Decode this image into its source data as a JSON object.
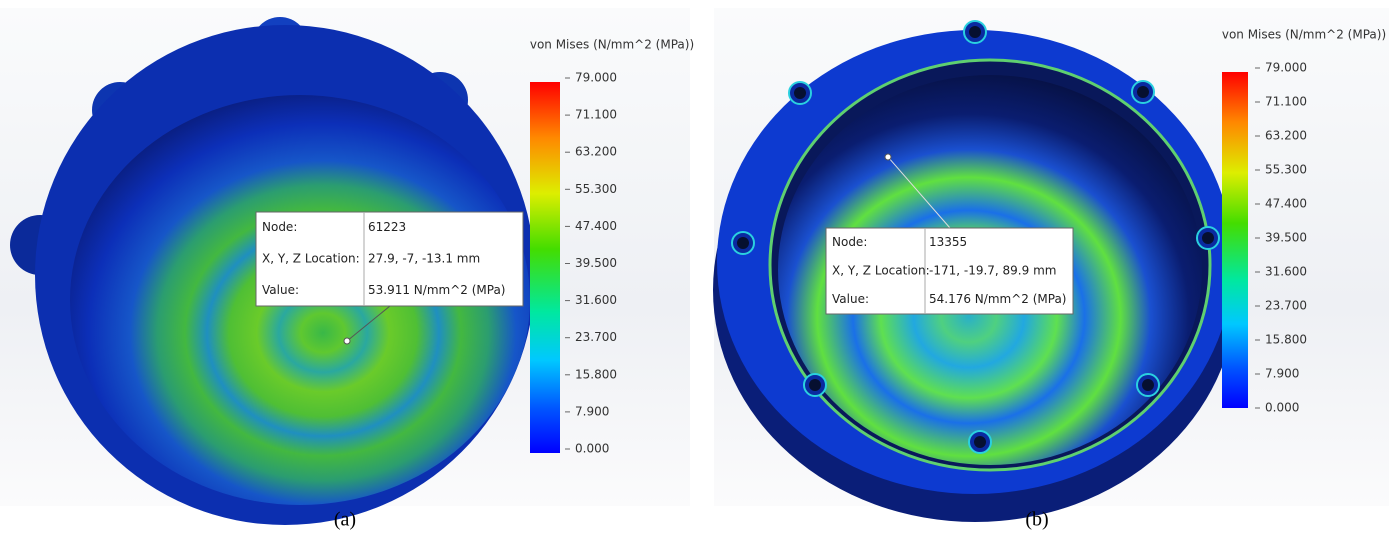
{
  "panels": [
    {
      "caption": "(a)",
      "legend_title": "von Mises (N/mm^2 (MPa))",
      "legend_ticks": [
        "79.000",
        "71.100",
        "63.200",
        "55.300",
        "47.400",
        "39.500",
        "31.600",
        "23.700",
        "15.800",
        "7.900",
        "0.000"
      ],
      "probe": {
        "rows": [
          [
            "Node:",
            "61223"
          ],
          [
            "X, Y, Z Location:",
            "27.9, -7, -13.1 mm"
          ],
          [
            "Value:",
            "53.911 N/mm^2 (MPa)"
          ]
        ]
      }
    },
    {
      "caption": "(b)",
      "legend_title": "von Mises (N/mm^2 (MPa))",
      "legend_ticks": [
        "79.000",
        "71.100",
        "63.200",
        "55.300",
        "47.400",
        "39.500",
        "31.600",
        "23.700",
        "15.800",
        "7.900",
        "0.000"
      ],
      "probe": {
        "rows": [
          [
            "Node:",
            "13355"
          ],
          [
            "X, Y, Z Location:",
            "-171, -19.7, 89.9 mm"
          ],
          [
            "Value:",
            "54.176 N/mm^2 (MPa)"
          ]
        ]
      }
    }
  ]
}
